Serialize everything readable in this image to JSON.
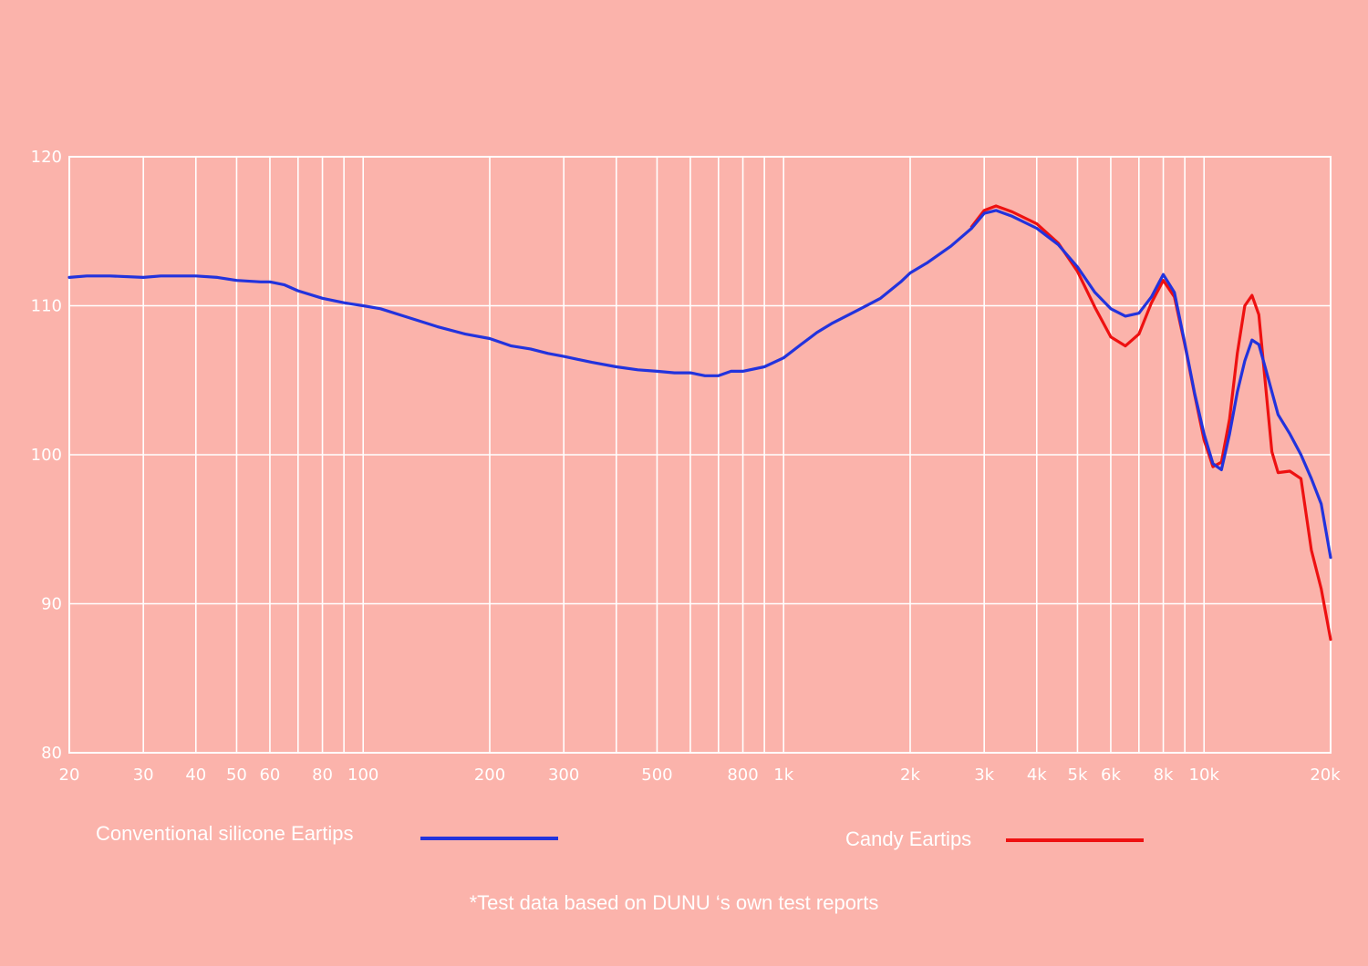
{
  "chart_data": {
    "type": "line",
    "x_scale": "log",
    "xlim": [
      20,
      20000
    ],
    "ylim": [
      80,
      120
    ],
    "grid": true,
    "y_ticks": [
      {
        "value": 120,
        "label": "120"
      },
      {
        "value": 110,
        "label": "110"
      },
      {
        "value": 100,
        "label": "100"
      },
      {
        "value": 90,
        "label": "90"
      },
      {
        "value": 80,
        "label": "80"
      }
    ],
    "x_ticks": [
      {
        "value": 20,
        "label": "20"
      },
      {
        "value": 30,
        "label": "30"
      },
      {
        "value": 40,
        "label": "40"
      },
      {
        "value": 50,
        "label": "50"
      },
      {
        "value": 60,
        "label": "60"
      },
      {
        "value": 80,
        "label": "80"
      },
      {
        "value": 100,
        "label": "100"
      },
      {
        "value": 200,
        "label": "200"
      },
      {
        "value": 300,
        "label": "300"
      },
      {
        "value": 500,
        "label": "500"
      },
      {
        "value": 800,
        "label": "800"
      },
      {
        "value": 1000,
        "label": "1k"
      },
      {
        "value": 2000,
        "label": "2k"
      },
      {
        "value": 3000,
        "label": "3k"
      },
      {
        "value": 4000,
        "label": "4k"
      },
      {
        "value": 5000,
        "label": "5k"
      },
      {
        "value": 6000,
        "label": "6k"
      },
      {
        "value": 8000,
        "label": "8k"
      },
      {
        "value": 10000,
        "label": "10k"
      },
      {
        "value": 20000,
        "label": "20k"
      }
    ],
    "gridlines_x": [
      20,
      30,
      40,
      50,
      60,
      70,
      80,
      90,
      100,
      200,
      300,
      400,
      500,
      600,
      700,
      800,
      900,
      1000,
      2000,
      3000,
      4000,
      5000,
      6000,
      7000,
      8000,
      9000,
      10000,
      20000
    ],
    "series": [
      {
        "name": "Conventional silicone Eartips",
        "color": "#2233dd",
        "points": [
          [
            20,
            111.9
          ],
          [
            22,
            112.0
          ],
          [
            25,
            112.0
          ],
          [
            30,
            111.9
          ],
          [
            33,
            112.0
          ],
          [
            40,
            112.0
          ],
          [
            45,
            111.9
          ],
          [
            50,
            111.7
          ],
          [
            57,
            111.6
          ],
          [
            60,
            111.6
          ],
          [
            65,
            111.4
          ],
          [
            70,
            111.0
          ],
          [
            80,
            110.5
          ],
          [
            90,
            110.2
          ],
          [
            100,
            110.0
          ],
          [
            110,
            109.8
          ],
          [
            125,
            109.3
          ],
          [
            150,
            108.6
          ],
          [
            175,
            108.1
          ],
          [
            200,
            107.8
          ],
          [
            225,
            107.3
          ],
          [
            250,
            107.1
          ],
          [
            275,
            106.8
          ],
          [
            300,
            106.6
          ],
          [
            350,
            106.2
          ],
          [
            400,
            105.9
          ],
          [
            450,
            105.7
          ],
          [
            500,
            105.6
          ],
          [
            550,
            105.5
          ],
          [
            600,
            105.5
          ],
          [
            650,
            105.3
          ],
          [
            700,
            105.3
          ],
          [
            750,
            105.6
          ],
          [
            800,
            105.6
          ],
          [
            900,
            105.9
          ],
          [
            1000,
            106.5
          ],
          [
            1100,
            107.4
          ],
          [
            1200,
            108.2
          ],
          [
            1300,
            108.8
          ],
          [
            1500,
            109.7
          ],
          [
            1700,
            110.5
          ],
          [
            1900,
            111.6
          ],
          [
            2000,
            112.2
          ],
          [
            2200,
            112.9
          ],
          [
            2500,
            114.0
          ],
          [
            2800,
            115.2
          ],
          [
            3000,
            116.2
          ],
          [
            3200,
            116.4
          ],
          [
            3500,
            116.0
          ],
          [
            4000,
            115.2
          ],
          [
            4500,
            114.1
          ],
          [
            5000,
            112.6
          ],
          [
            5500,
            110.9
          ],
          [
            6000,
            109.8
          ],
          [
            6500,
            109.3
          ],
          [
            7000,
            109.5
          ],
          [
            7500,
            110.6
          ],
          [
            8000,
            112.1
          ],
          [
            8500,
            110.9
          ],
          [
            9000,
            107.5
          ],
          [
            9500,
            104.1
          ],
          [
            10000,
            101.4
          ],
          [
            10500,
            99.4
          ],
          [
            11000,
            99.0
          ],
          [
            11500,
            101.4
          ],
          [
            12000,
            104.2
          ],
          [
            12500,
            106.3
          ],
          [
            13000,
            107.7
          ],
          [
            13500,
            107.4
          ],
          [
            14000,
            105.8
          ],
          [
            15000,
            102.7
          ],
          [
            16000,
            101.4
          ],
          [
            17000,
            100.0
          ],
          [
            18000,
            98.4
          ],
          [
            19000,
            96.7
          ],
          [
            20000,
            93.1
          ]
        ]
      },
      {
        "name": "Candy Eartips",
        "color": "#ee1111",
        "points": [
          [
            2800,
            115.3
          ],
          [
            3000,
            116.4
          ],
          [
            3200,
            116.7
          ],
          [
            3500,
            116.3
          ],
          [
            4000,
            115.5
          ],
          [
            4500,
            114.2
          ],
          [
            5000,
            112.3
          ],
          [
            5500,
            109.9
          ],
          [
            6000,
            107.9
          ],
          [
            6500,
            107.3
          ],
          [
            7000,
            108.1
          ],
          [
            7500,
            110.2
          ],
          [
            8000,
            111.7
          ],
          [
            8500,
            110.6
          ],
          [
            9000,
            107.4
          ],
          [
            9500,
            104.0
          ],
          [
            10000,
            101.0
          ],
          [
            10500,
            99.2
          ],
          [
            11000,
            99.5
          ],
          [
            11500,
            102.4
          ],
          [
            12000,
            106.8
          ],
          [
            12500,
            110.0
          ],
          [
            13000,
            110.7
          ],
          [
            13500,
            109.4
          ],
          [
            14000,
            104.7
          ],
          [
            14500,
            100.2
          ],
          [
            15000,
            98.8
          ],
          [
            16000,
            98.9
          ],
          [
            17000,
            98.4
          ],
          [
            18000,
            93.6
          ],
          [
            19000,
            91.0
          ],
          [
            20000,
            87.6
          ]
        ]
      }
    ]
  },
  "legend": {
    "silicone_label": "Conventional silicone Eartips",
    "silicone_color": "#2233dd",
    "candy_label": "Candy Eartips",
    "candy_color": "#ee1111"
  },
  "footnote": "*Test data based on DUNU ‘s own test reports"
}
